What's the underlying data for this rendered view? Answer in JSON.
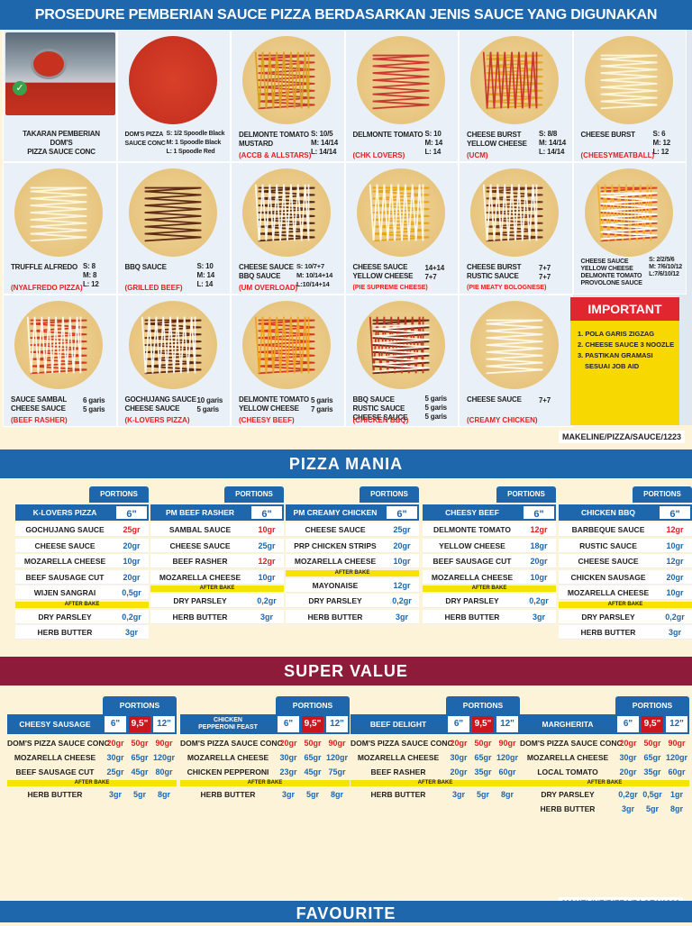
{
  "header": {
    "title": "PROSEDURE PEMBERIAN SAUCE PIZZA BERDASARKAN JENIS SAUCE YANG DIGUNAKAN"
  },
  "sauce_grid": [
    {
      "label": "TAKARAN PEMBERIAN DOM'S\nPIZZA SAUCE CONC",
      "spec": "",
      "topping": ""
    },
    {
      "label": "DOM'S PIZZA\nSAUCE CONC",
      "spec": "S: 1/2 Spoodle Black\nM: 1 Spoodle Black\nL: 1 Spoodle Red",
      "topping": ""
    },
    {
      "label": "DELMONTE TOMATO\nMUSTARD",
      "spec": "S: 10/5\nM: 14/14\nL: 14/14",
      "topping": "(ACCB & ALLSTARS)"
    },
    {
      "label": "DELMONTE TOMATO",
      "spec": "S: 10\nM: 14\nL: 14",
      "topping": "(CHK LOVERS)"
    },
    {
      "label": "CHEESE BURST\nYELLOW CHEESE",
      "spec": "S: 8/8\nM: 14/14\nL: 14/14",
      "topping": "(UCM)"
    },
    {
      "label": "CHEESE BURST",
      "spec": "S: 6\nM: 12\nL: 12",
      "topping": "(CHEESYMEATBALL)"
    },
    {
      "label": "TRUFFLE ALFREDO",
      "spec": "S: 8\nM: 8\nL: 12",
      "topping": "(NYALFREDO PIZZA)"
    },
    {
      "label": "BBQ SAUCE",
      "spec": "S: 10\nM: 14\nL: 14",
      "topping": "(GRILLED BEEF)"
    },
    {
      "label": "CHEESE SAUCE\nBBQ SAUCE",
      "spec": "S: 10/7+7\nM: 10/14+14\nL:10/14+14",
      "topping": "(UM OVERLOAD)"
    },
    {
      "label": "CHEESE SAUCE\nYELLOW CHEESE",
      "spec": "14+14\n7+7",
      "topping": "(PIE SUPREME CHEESE)"
    },
    {
      "label": "CHEESE BURST\nRUSTIC SAUCE",
      "spec": "7+7\n7+7",
      "topping": "(PIE MEATY BOLOGNESE)"
    },
    {
      "label": "CHEESE SAUCE\nYELLOW CHEESE\nDELMONTE TOMATO\nPROVOLONE SAUCE",
      "spec": "S: 2/2/5/6\nM: 7/6/10/12\nL:7/6/10/12",
      "topping": ""
    },
    {
      "label": "SAUCE SAMBAL\nCHEESE SAUCE",
      "spec": "6 garis\n5 garis",
      "topping": "(BEEF RASHER)"
    },
    {
      "label": "GOCHUJANG SAUCE\nCHEESE SAUCE",
      "spec": "10 garis\n5 garis",
      "topping": "(K-LOVERS PIZZA)"
    },
    {
      "label": "DELMONTE TOMATO\nYELLOW CHEESE",
      "spec": "5 garis\n7 garis",
      "topping": "(CHEESY BEEF)"
    },
    {
      "label": "BBQ SAUCE\nRUSTIC SAUCE\nCHEESE SAUCE",
      "spec": "5 garis\n5 garis\n5 garis",
      "topping": "(CHICKEN BBQ)"
    },
    {
      "label": "CHEESE SAUCE",
      "spec": "7+7",
      "topping": "(CREAMY CHICKEN)"
    }
  ],
  "important": {
    "title": "IMPORTANT",
    "items": [
      "1. POLA GARIS ZIGZAG",
      "2. CHEESE SAUCE 3 NOOZLE",
      "3. PASTIKAN GRAMASI",
      "SESUAI JOB AID"
    ]
  },
  "code1": "MAKELINE/PIZZA/SAUCE/1223",
  "pizza_mania": {
    "title": "PIZZA MANIA",
    "portions_label": "PORTIONS",
    "tables": [
      {
        "name": "K-LOVERS PIZZA",
        "size": "6\"",
        "rows": [
          [
            "GOCHUJANG SAUCE",
            "25gr"
          ],
          [
            "CHEESE SAUCE",
            "20gr"
          ],
          [
            "MOZARELLA CHEESE",
            "10gr"
          ],
          [
            "BEEF SAUSAGE CUT",
            "20gr"
          ],
          [
            "WIJEN SANGRAI",
            "0,5gr"
          ]
        ],
        "after": [
          [
            "DRY PARSLEY",
            "0,2gr"
          ],
          [
            "HERB BUTTER",
            "3gr"
          ]
        ]
      },
      {
        "name": "PM BEEF RASHER",
        "size": "6\"",
        "rows": [
          [
            "SAMBAL SAUCE",
            "10gr"
          ],
          [
            "CHEESE SAUCE",
            "25gr"
          ],
          [
            "BEEF RASHER",
            "12gr"
          ],
          [
            "MOZARELLA CHEESE",
            "10gr"
          ]
        ],
        "after": [
          [
            "DRY PARSLEY",
            "0,2gr"
          ],
          [
            "HERB BUTTER",
            "3gr"
          ]
        ]
      },
      {
        "name": "PM CREAMY CHICKEN",
        "size": "6\"",
        "rows": [
          [
            "CHEESE SAUCE",
            "25gr"
          ],
          [
            "PRP CHICKEN STRIPS",
            "20gr"
          ],
          [
            "MOZARELLA CHEESE",
            "10gr"
          ]
        ],
        "after": [
          [
            "MAYONAISE",
            "12gr"
          ],
          [
            "DRY PARSLEY",
            "0,2gr"
          ],
          [
            "HERB BUTTER",
            "3gr"
          ]
        ]
      },
      {
        "name": "CHEESY BEEF",
        "size": "6\"",
        "rows": [
          [
            "DELMONTE TOMATO",
            "12gr"
          ],
          [
            "YELLOW CHEESE",
            "18gr"
          ],
          [
            "BEEF SAUSAGE CUT",
            "20gr"
          ],
          [
            "MOZARELLA CHEESE",
            "10gr"
          ]
        ],
        "after": [
          [
            "DRY PARSLEY",
            "0,2gr"
          ],
          [
            "HERB BUTTER",
            "3gr"
          ]
        ]
      },
      {
        "name": "CHICKEN BBQ",
        "size": "6\"",
        "rows": [
          [
            "BARBEQUE SAUCE",
            "12gr"
          ],
          [
            "RUSTIC SAUCE",
            "10gr"
          ],
          [
            "CHEESE SAUCE",
            "12gr"
          ],
          [
            "CHICKEN SAUSAGE",
            "20gr"
          ],
          [
            "MOZARELLA CHEESE",
            "10gr"
          ]
        ],
        "after": [
          [
            "DRY PARSLEY",
            "0,2gr"
          ],
          [
            "HERB BUTTER",
            "3gr"
          ]
        ]
      }
    ],
    "after_label": "AFTER BAKE"
  },
  "super_value": {
    "title": "SUPER VALUE",
    "portions_label": "PORTIONS",
    "sizes": [
      "6\"",
      "9,5\"",
      "12\""
    ],
    "after_label": "AFTER BAKE",
    "tables": [
      {
        "name": "CHEESY SAUSAGE",
        "rows": [
          [
            "DOM'S PIZZA SAUCE CONC",
            "20gr",
            "50gr",
            "90gr"
          ],
          [
            "MOZARELLA CHEESE",
            "30gr",
            "65gr",
            "120gr"
          ],
          [
            "BEEF SAUSAGE CUT",
            "25gr",
            "45gr",
            "80gr"
          ]
        ],
        "after": [
          [
            "HERB BUTTER",
            "3gr",
            "5gr",
            "8gr"
          ]
        ]
      },
      {
        "name": "CHICKEN\nPEPPERONI FEAST",
        "rows": [
          [
            "DOM'S PIZZA SAUCE CONC",
            "20gr",
            "50gr",
            "90gr"
          ],
          [
            "MOZARELLA CHEESE",
            "30gr",
            "65gr",
            "120gr"
          ],
          [
            "CHICKEN PEPPERONI",
            "23gr",
            "45gr",
            "75gr"
          ]
        ],
        "after": [
          [
            "HERB BUTTER",
            "3gr",
            "5gr",
            "8gr"
          ]
        ]
      },
      {
        "name": "BEEF DELIGHT",
        "rows": [
          [
            "DOM'S PIZZA SAUCE CONC",
            "20gr",
            "50gr",
            "90gr"
          ],
          [
            "MOZARELLA CHEESE",
            "30gr",
            "65gr",
            "120gr"
          ],
          [
            "BEEF RASHER",
            "20gr",
            "35gr",
            "60gr"
          ]
        ],
        "after": [
          [
            "HERB BUTTER",
            "3gr",
            "5gr",
            "8gr"
          ]
        ]
      },
      {
        "name": "MARGHERITA",
        "rows": [
          [
            "DOM'S PIZZA SAUCE CONC",
            "20gr",
            "50gr",
            "90gr"
          ],
          [
            "MOZARELLA CHEESE",
            "30gr",
            "65gr",
            "120gr"
          ],
          [
            "LOCAL TOMATO",
            "20gr",
            "35gr",
            "60gr"
          ]
        ],
        "after": [
          [
            "DRY PARSLEY",
            "0,2gr",
            "0,5gr",
            "1gr"
          ],
          [
            "HERB BUTTER",
            "3gr",
            "5gr",
            "8gr"
          ]
        ]
      }
    ]
  },
  "code2": "MAKELINE/PIZZA/PAGE1/1223",
  "favourite": {
    "title": "FAVOURITE"
  },
  "colors": {
    "blue": "#1e67ad",
    "maroon": "#8e1b3a",
    "red": "#e02020",
    "yellow": "#f7d800"
  }
}
